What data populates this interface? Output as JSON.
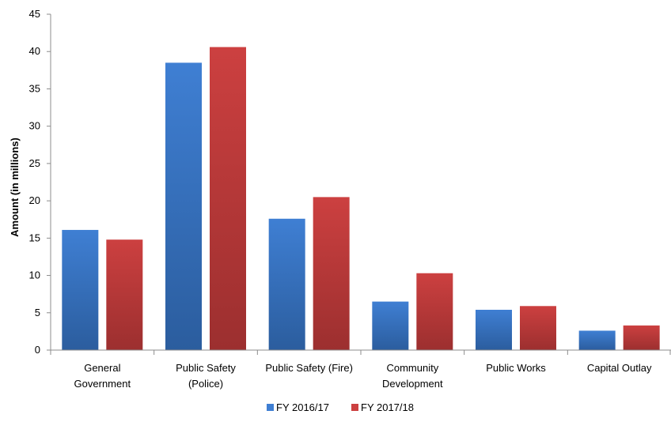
{
  "chart_data": {
    "type": "bar",
    "title": "",
    "xlabel": "",
    "ylabel": "Amount (in millions)",
    "ylim": [
      0,
      45
    ],
    "yticks": [
      0,
      5,
      10,
      15,
      20,
      25,
      30,
      35,
      40,
      45
    ],
    "grid": false,
    "legend_position": "bottom-center",
    "categories": [
      [
        "General",
        "Government"
      ],
      [
        "Public Safety",
        "(Police)"
      ],
      [
        "Public Safety (Fire)"
      ],
      [
        "Community",
        "Development"
      ],
      [
        "Public Works"
      ],
      [
        "Capital Outlay"
      ]
    ],
    "series": [
      {
        "name": "FY 2016/17",
        "values": [
          16.1,
          38.5,
          17.6,
          6.5,
          5.4,
          2.6
        ],
        "color": "#3f7fd3"
      },
      {
        "name": "FY 2017/18",
        "values": [
          14.8,
          40.6,
          20.5,
          10.3,
          5.9,
          3.3
        ],
        "color": "#cc4040"
      }
    ]
  }
}
